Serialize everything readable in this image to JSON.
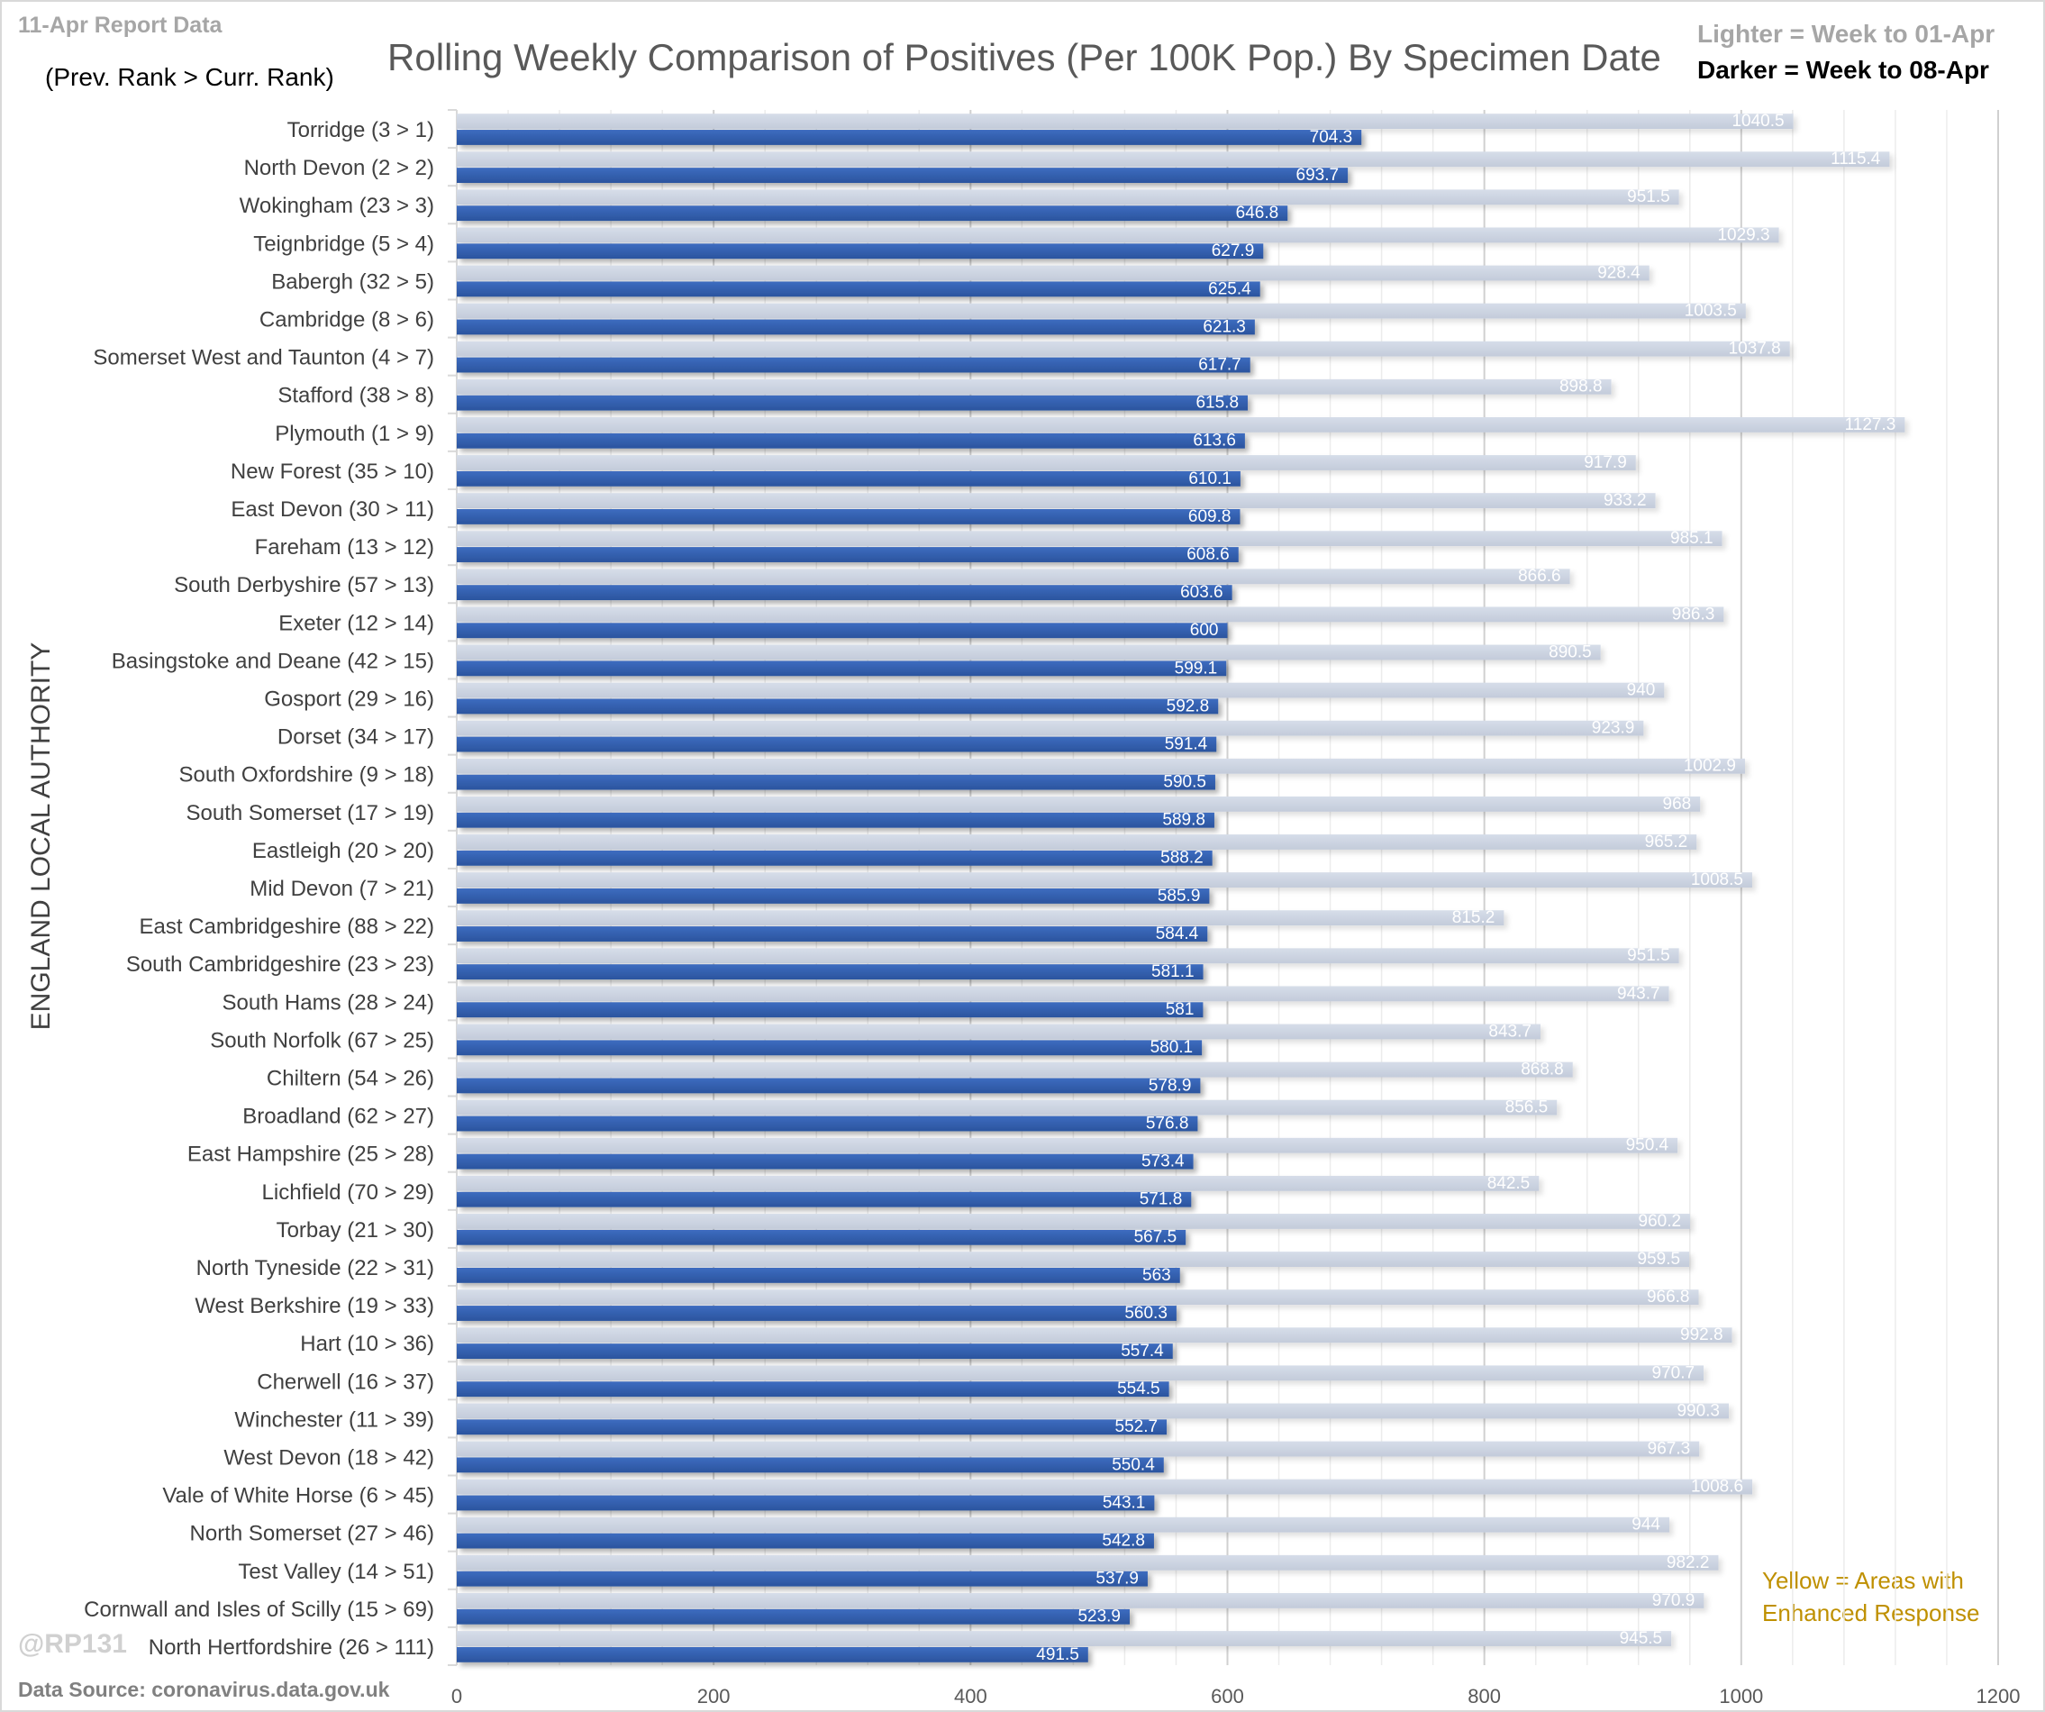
{
  "header": {
    "report_label": "11-Apr Report Data",
    "rank_note": "(Prev. Rank > Curr. Rank)",
    "legend_lighter": "Lighter =  Week to 01-Apr",
    "legend_darker": "Darker =  Week to 08-Apr"
  },
  "footer": {
    "handle": "@RP131",
    "source": "Data Source: coronavirus.data.gov.uk",
    "yellow_note_line1": "Yellow = Areas with",
    "yellow_note_line2": "Enhanced  Response"
  },
  "chart_data": {
    "type": "bar",
    "orientation": "horizontal",
    "title": "Rolling Weekly Comparison of Positives  (Per 100K Pop.) By Specimen Date",
    "xlabel": "",
    "ylabel": "ENGLAND LOCAL AUTHORITY",
    "xlim": [
      0,
      1200
    ],
    "xticks": [
      0,
      200,
      400,
      600,
      800,
      1000,
      1200
    ],
    "grid": true,
    "colors": {
      "lighter": "#c9d1df",
      "darker": "#3461b0"
    },
    "categories": [
      "Torridge (3 > 1)",
      "North Devon (2 > 2)",
      "Wokingham (23 > 3)",
      "Teignbridge (5 > 4)",
      "Babergh (32 > 5)",
      "Cambridge (8 > 6)",
      "Somerset West and Taunton (4 > 7)",
      "Stafford (38 > 8)",
      "Plymouth (1 > 9)",
      "New Forest (35 > 10)",
      "East Devon (30 > 11)",
      "Fareham (13 > 12)",
      "South Derbyshire (57 > 13)",
      "Exeter (12 > 14)",
      "Basingstoke and Deane (42 > 15)",
      "Gosport (29 > 16)",
      "Dorset (34 > 17)",
      "South Oxfordshire (9 > 18)",
      "South Somerset (17 > 19)",
      "Eastleigh (20 > 20)",
      "Mid Devon (7 > 21)",
      "East Cambridgeshire (88 > 22)",
      "South Cambridgeshire (23 > 23)",
      "South Hams (28 > 24)",
      "South Norfolk (67 > 25)",
      "Chiltern (54 > 26)",
      "Broadland (62 > 27)",
      "East Hampshire (25 > 28)",
      "Lichfield (70 > 29)",
      "Torbay (21 > 30)",
      "North Tyneside (22 > 31)",
      "West Berkshire (19 > 33)",
      "Hart (10 > 36)",
      "Cherwell (16 > 37)",
      "Winchester (11 > 39)",
      "West Devon (18 > 42)",
      "Vale of White Horse (6 > 45)",
      "North Somerset (27 > 46)",
      "Test Valley (14 > 51)",
      "Cornwall and Isles of Scilly (15 > 69)",
      "North Hertfordshire (26 > 111)"
    ],
    "series": [
      {
        "name": "Week to 01-Apr",
        "values": [
          1040.5,
          1115.4,
          951.5,
          1029.3,
          928.4,
          1003.5,
          1037.8,
          898.8,
          1127.3,
          917.9,
          933.2,
          985.1,
          866.6,
          986.3,
          890.5,
          940,
          923.9,
          1002.9,
          968,
          965.2,
          1008.5,
          815.2,
          951.5,
          943.7,
          843.7,
          868.8,
          856.5,
          950.4,
          842.5,
          960.2,
          959.5,
          966.8,
          992.8,
          970.7,
          990.3,
          967.3,
          1008.6,
          944,
          982.2,
          970.9,
          945.5
        ]
      },
      {
        "name": "Week to 08-Apr",
        "values": [
          704.3,
          693.7,
          646.8,
          627.9,
          625.4,
          621.3,
          617.7,
          615.8,
          613.6,
          610.1,
          609.8,
          608.6,
          603.6,
          600,
          599.1,
          592.8,
          591.4,
          590.5,
          589.8,
          588.2,
          585.9,
          584.4,
          581.1,
          581,
          580.1,
          578.9,
          576.8,
          573.4,
          571.8,
          567.5,
          563,
          560.3,
          557.4,
          554.5,
          552.7,
          550.4,
          543.1,
          542.8,
          537.9,
          523.9,
          491.5
        ]
      }
    ]
  }
}
